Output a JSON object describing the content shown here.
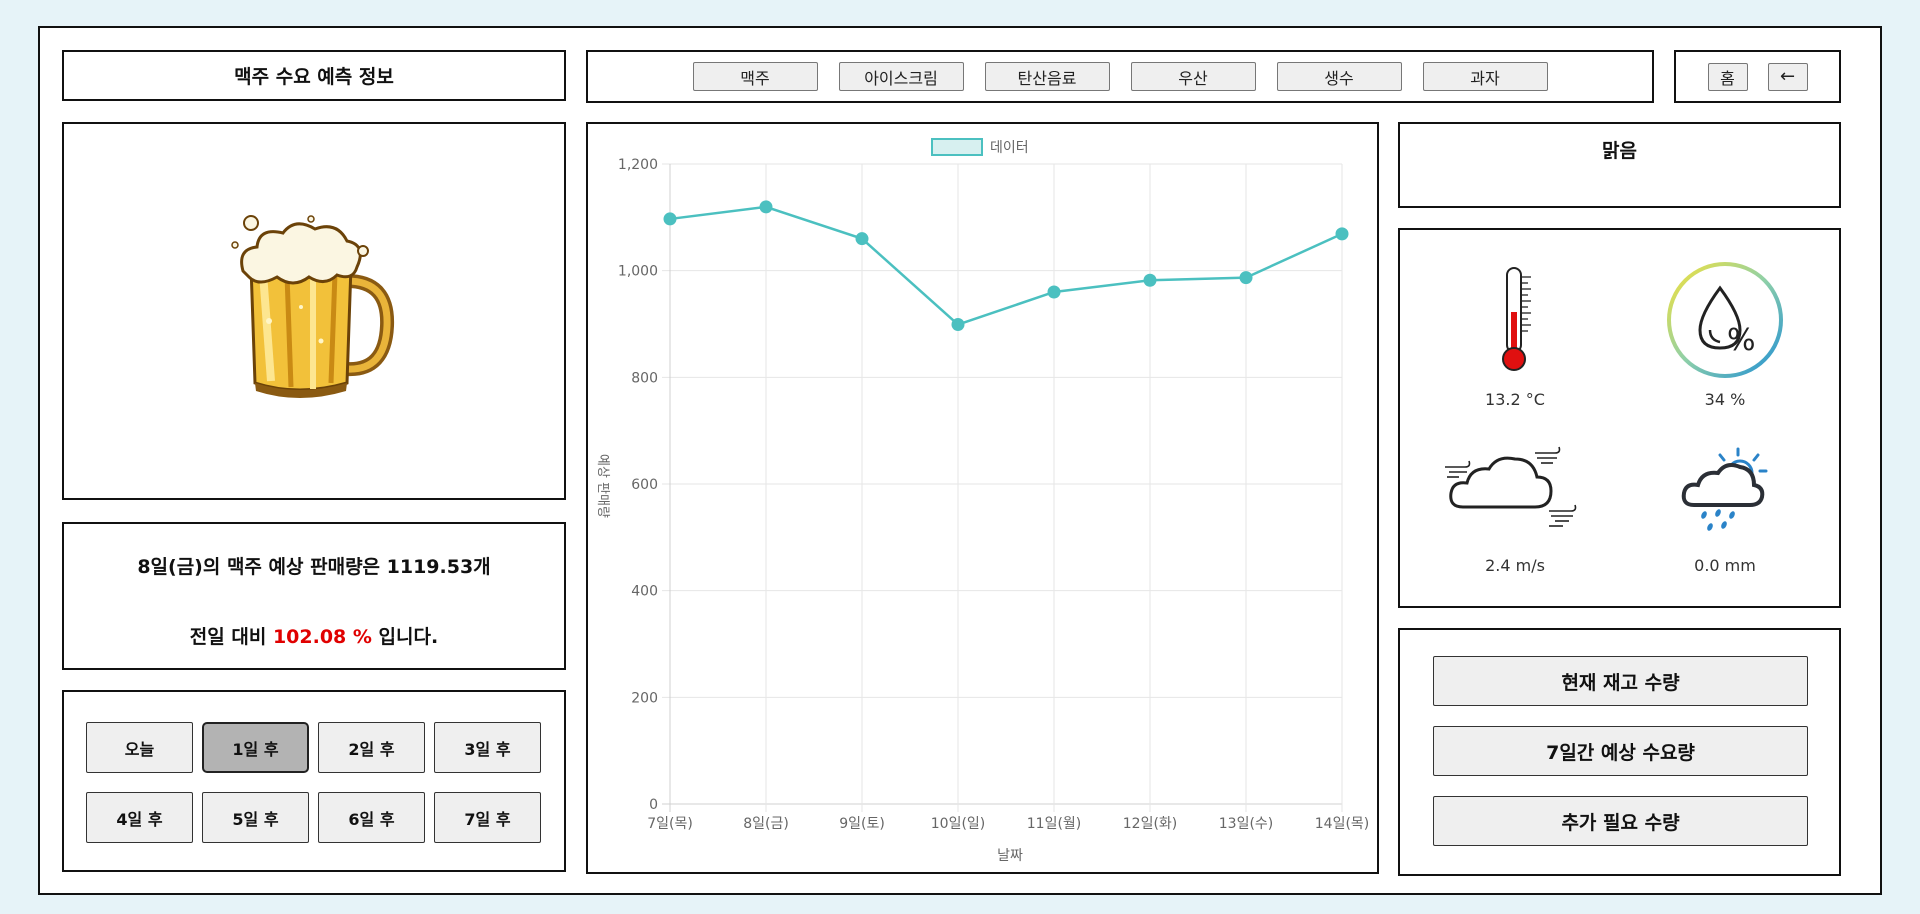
{
  "header": {
    "title": "맥주 수요 예측 정보"
  },
  "tabs": [
    "맥주",
    "아이스크림",
    "탄산음료",
    "우산",
    "생수",
    "과자"
  ],
  "nav": {
    "home": "홈",
    "back": "←"
  },
  "forecast": {
    "line1": "8일(금)의 맥주 예상 판매량은 1119.53개",
    "line2_prefix": "전일 대비 ",
    "line2_pct": "102.08 %",
    "line2_suffix": " 입니다."
  },
  "days": [
    "오늘",
    "1일 후",
    "2일 후",
    "3일 후",
    "4일 후",
    "5일 후",
    "6일 후",
    "7일 후"
  ],
  "active_day_index": 1,
  "weather": {
    "sky": "맑음",
    "temperature": "13.2 °C",
    "humidity": "34 %",
    "wind": "2.4 m/s",
    "precipitation": "0.0 mm",
    "icons": [
      "thermometer-icon",
      "humidity-icon",
      "windy-cloud-icon",
      "sun-rain-cloud-icon"
    ]
  },
  "stock_buttons": [
    "현재 재고 수량",
    "7일간 예상 수요량",
    "추가 필요 수량"
  ],
  "colors": {
    "series": "#4bc0c0",
    "series_fill": "#d7f0f0",
    "highlight": "#e00000"
  },
  "chart_data": {
    "type": "line",
    "categories": [
      "7일(목)",
      "8일(금)",
      "9일(토)",
      "10일(일)",
      "11일(월)",
      "12일(화)",
      "13일(수)",
      "14일(목)"
    ],
    "series": [
      {
        "name": "데이터",
        "values": [
          1097,
          1119.53,
          1060,
          899,
          960,
          982,
          987,
          1069
        ]
      }
    ],
    "xlabel": "날짜",
    "ylabel": "예상 판매량",
    "ylim": [
      0,
      1200
    ],
    "yticks": [
      0,
      200,
      400,
      600,
      800,
      1000,
      1200
    ],
    "ytick_labels": [
      "0",
      "200",
      "400",
      "600",
      "800",
      "1,000",
      "1,200"
    ],
    "grid": true,
    "legend": "top-center"
  }
}
